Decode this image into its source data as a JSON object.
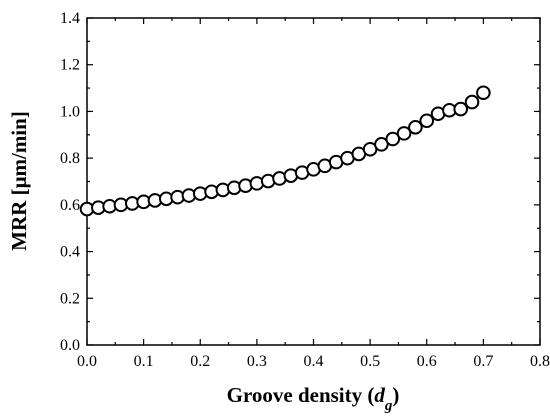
{
  "chart_data": {
    "type": "scatter",
    "title": "",
    "xlabel_prefix": "Groove density (",
    "xlabel_var": "d",
    "xlabel_sub": "g",
    "xlabel_suffix": ")",
    "ylabel": "MRR [μm/min]",
    "xlim": [
      0.0,
      0.8
    ],
    "ylim": [
      0.0,
      1.4
    ],
    "x_ticks": [
      "0.0",
      "0.1",
      "0.2",
      "0.3",
      "0.4",
      "0.5",
      "0.6",
      "0.7",
      "0.8"
    ],
    "y_ticks": [
      "0.0",
      "0.2",
      "0.4",
      "0.6",
      "0.8",
      "1.0",
      "1.2",
      "1.4"
    ],
    "marker": "open-circle",
    "grid": false,
    "legend": "none",
    "series": [
      {
        "points": [
          [
            0.0,
            0.582
          ],
          [
            0.02,
            0.588
          ],
          [
            0.04,
            0.594
          ],
          [
            0.06,
            0.6
          ],
          [
            0.08,
            0.606
          ],
          [
            0.1,
            0.613
          ],
          [
            0.12,
            0.619
          ],
          [
            0.14,
            0.626
          ],
          [
            0.16,
            0.633
          ],
          [
            0.18,
            0.64
          ],
          [
            0.2,
            0.648
          ],
          [
            0.22,
            0.656
          ],
          [
            0.24,
            0.664
          ],
          [
            0.26,
            0.673
          ],
          [
            0.28,
            0.682
          ],
          [
            0.3,
            0.692
          ],
          [
            0.32,
            0.702
          ],
          [
            0.34,
            0.713
          ],
          [
            0.36,
            0.725
          ],
          [
            0.38,
            0.738
          ],
          [
            0.4,
            0.752
          ],
          [
            0.42,
            0.767
          ],
          [
            0.44,
            0.783
          ],
          [
            0.46,
            0.8
          ],
          [
            0.48,
            0.818
          ],
          [
            0.5,
            0.838
          ],
          [
            0.52,
            0.859
          ],
          [
            0.54,
            0.882
          ],
          [
            0.56,
            0.906
          ],
          [
            0.58,
            0.932
          ],
          [
            0.6,
            0.96
          ],
          [
            0.62,
            0.99
          ],
          [
            0.64,
            1.005
          ],
          [
            0.66,
            1.01
          ],
          [
            0.68,
            1.04
          ],
          [
            0.7,
            1.08
          ]
        ]
      }
    ]
  }
}
